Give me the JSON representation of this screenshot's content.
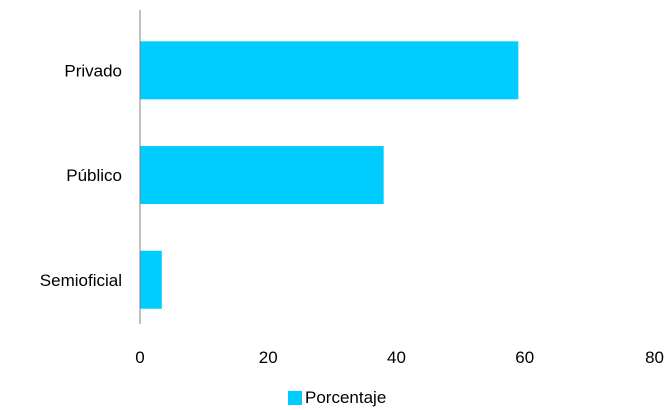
{
  "chart_data": {
    "type": "bar",
    "orientation": "horizontal",
    "title": "",
    "categories": [
      "Privado",
      "Público",
      "Semioficial"
    ],
    "series": [
      {
        "name": "Porcentaje",
        "values": [
          59,
          38,
          3.4
        ],
        "color": "#00CCFF"
      }
    ],
    "xlim": [
      0,
      80
    ],
    "xticks": [
      0,
      20,
      40,
      60,
      80
    ],
    "xlabel": "",
    "ylabel": "",
    "grid": false,
    "legend_position": "bottom"
  }
}
